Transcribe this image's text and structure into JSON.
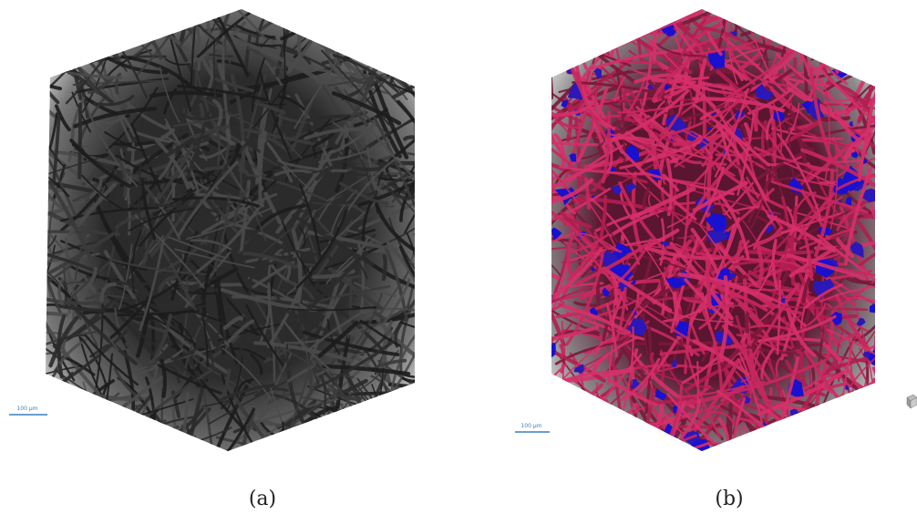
{
  "panels": [
    {
      "label": "(a)",
      "scale_bar": "100 µm"
    },
    {
      "label": "(b)",
      "scale_bar": "100 µm"
    }
  ]
}
